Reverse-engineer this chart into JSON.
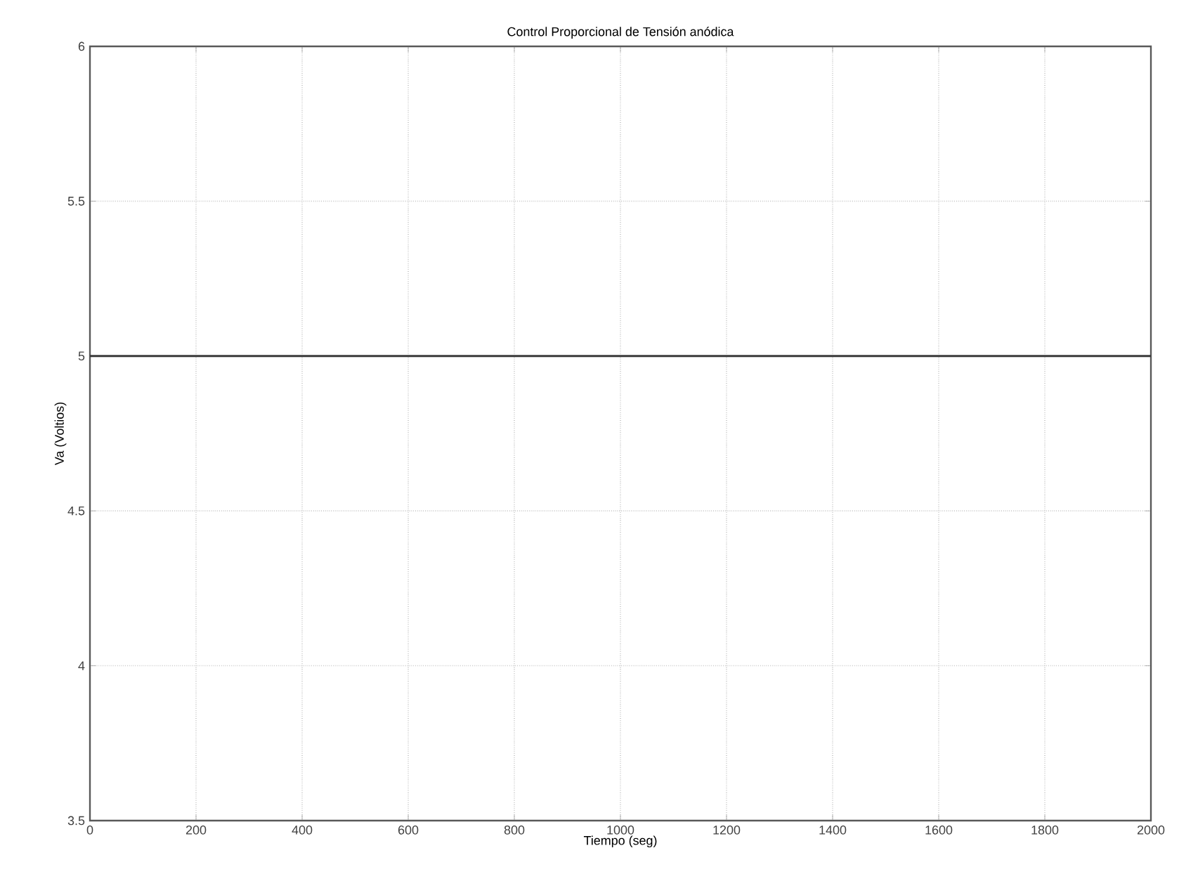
{
  "chart_data": {
    "type": "line",
    "title": "Control Proporcional de Tensión anódica",
    "xlabel": "Tiempo       (seg)",
    "ylabel": "Va  (Voltios)",
    "x": [
      0,
      2000
    ],
    "series": [
      {
        "color": "#3a3a3a",
        "values": [
          5,
          5
        ]
      }
    ],
    "xlim": [
      0,
      2000
    ],
    "xticks": [
      0,
      200,
      400,
      600,
      800,
      1000,
      1200,
      1400,
      1600,
      1800,
      2000
    ],
    "ylim": [
      3.5,
      6
    ],
    "yticks": [
      3.5,
      4,
      4.5,
      5,
      5.5,
      6
    ],
    "grid": true,
    "marker": "none",
    "line_style": "solid"
  }
}
